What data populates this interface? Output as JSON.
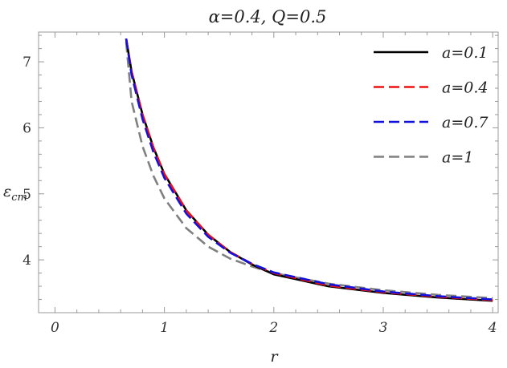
{
  "chart_data": {
    "type": "line",
    "title": "α=0.4, Q=0.5",
    "xlabel": "r",
    "ylabel": "ε",
    "ylabel_sub": "cm",
    "xlim": [
      -0.15,
      4.05
    ],
    "ylim": [
      3.2,
      7.45
    ],
    "x_ticks": [
      0,
      1,
      2,
      3,
      4
    ],
    "y_ticks": [
      4,
      5,
      6,
      7
    ],
    "legend_position": "top-right",
    "series": [
      {
        "name": "a=0.1",
        "color": "#000000",
        "dash": "solid",
        "x": [
          0.65,
          0.7,
          0.8,
          0.9,
          1.0,
          1.2,
          1.4,
          1.6,
          1.8,
          2.0,
          2.5,
          3.0,
          3.5,
          4.0
        ],
        "y": [
          7.35,
          6.85,
          6.2,
          5.7,
          5.3,
          4.75,
          4.38,
          4.12,
          3.93,
          3.78,
          3.6,
          3.5,
          3.43,
          3.38
        ]
      },
      {
        "name": "a=0.4",
        "color": "#ee1111",
        "dash": "dashed",
        "x": [
          0.65,
          0.7,
          0.8,
          0.9,
          1.0,
          1.2,
          1.4,
          1.6,
          1.8,
          2.0,
          2.5,
          3.0,
          3.5,
          4.0
        ],
        "y": [
          7.35,
          6.85,
          6.2,
          5.7,
          5.3,
          4.75,
          4.38,
          4.12,
          3.94,
          3.8,
          3.61,
          3.51,
          3.44,
          3.39
        ]
      },
      {
        "name": "a=0.7",
        "color": "#1111dd",
        "dash": "dashed",
        "x": [
          0.65,
          0.7,
          0.8,
          0.9,
          1.0,
          1.2,
          1.4,
          1.6,
          1.8,
          2.0,
          2.5,
          3.0,
          3.5,
          4.0
        ],
        "y": [
          7.35,
          6.8,
          6.13,
          5.63,
          5.24,
          4.7,
          4.35,
          4.11,
          3.94,
          3.81,
          3.63,
          3.52,
          3.45,
          3.4
        ]
      },
      {
        "name": "a=1",
        "color": "#808080",
        "dash": "dashed",
        "x": [
          0.65,
          0.7,
          0.8,
          0.9,
          1.0,
          1.2,
          1.4,
          1.6,
          1.8,
          2.0,
          2.5,
          3.0,
          3.5,
          4.0
        ],
        "y": [
          7.3,
          6.4,
          5.72,
          5.27,
          4.93,
          4.48,
          4.2,
          4.02,
          3.9,
          3.8,
          3.64,
          3.54,
          3.47,
          3.42
        ]
      }
    ]
  }
}
